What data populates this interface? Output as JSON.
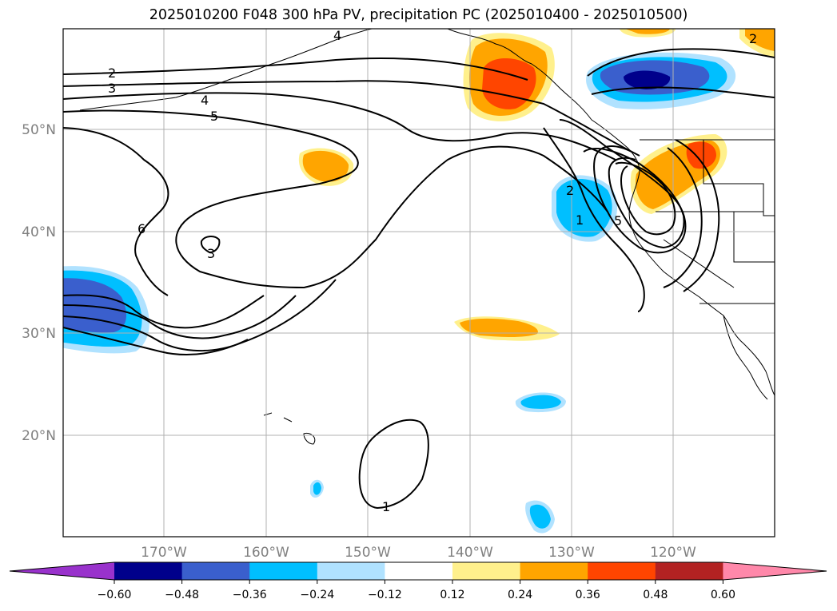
{
  "title": "2025010200 F048 300 hPa PV, precipitation PC (2025010400 - 2025010500)",
  "map": {
    "lat_labels": [
      "50°N",
      "40°N",
      "30°N",
      "20°N"
    ],
    "lon_labels": [
      "170°W",
      "160°W",
      "150°W",
      "140°W",
      "130°W",
      "120°W"
    ],
    "grid": true,
    "pv_contour_labels": [
      "2",
      "3",
      "4",
      "5",
      "6",
      "3",
      "1",
      "2",
      "1",
      "5",
      "4",
      "2"
    ]
  },
  "colorbar": {
    "ticks": [
      "−0.60",
      "−0.48",
      "−0.36",
      "−0.24",
      "−0.12",
      "0.12",
      "0.24",
      "0.36",
      "0.48",
      "0.60"
    ],
    "colors": [
      "#9932cc",
      "#00008b",
      "#3a5fcd",
      "#00bfff",
      "#b0e2ff",
      "#ffffff",
      "#fff08c",
      "#ffa500",
      "#ff4500",
      "#b22222",
      "#ff88aa"
    ]
  }
}
